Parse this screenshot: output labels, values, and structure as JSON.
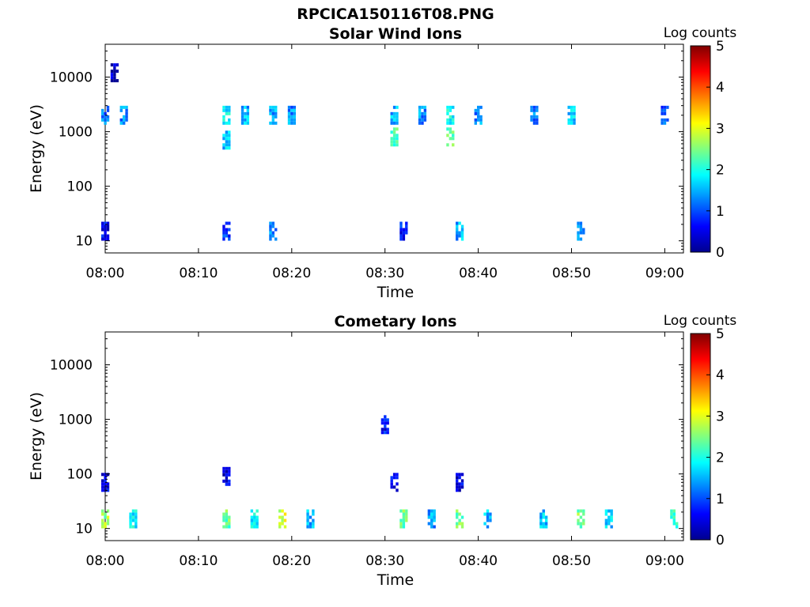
{
  "figure": {
    "filename": "RPCICA150116T08.PNG"
  },
  "colorbar": {
    "label": "Log counts",
    "ticks": [
      "0",
      "1",
      "2",
      "3",
      "4",
      "5"
    ],
    "range": [
      0,
      5
    ],
    "colormap": "jet"
  },
  "chart_data": [
    {
      "type": "heatmap",
      "title": "Solar Wind Ions",
      "xlabel": "Time",
      "ylabel": "Energy (eV)",
      "x_ticks": [
        "08:00",
        "08:10",
        "08:20",
        "08:30",
        "08:40",
        "08:50",
        "09:00"
      ],
      "y_ticks": [
        "10",
        "100",
        "1000",
        "10000"
      ],
      "xlim": [
        "08:00",
        "09:02"
      ],
      "ylim": [
        6,
        40000
      ],
      "yscale": "log",
      "colorbar_label": "Log counts",
      "clim": [
        0,
        5
      ],
      "patches": [
        {
          "t": "08:00",
          "e": 2000,
          "v": 1.2
        },
        {
          "t": "08:00",
          "e": 15,
          "v": 0.6
        },
        {
          "t": "08:01",
          "e": 12000,
          "v": 0.3
        },
        {
          "t": "08:02",
          "e": 2000,
          "v": 1.3
        },
        {
          "t": "08:13",
          "e": 2000,
          "v": 1.8
        },
        {
          "t": "08:13",
          "e": 700,
          "v": 1.6
        },
        {
          "t": "08:13",
          "e": 15,
          "v": 0.9
        },
        {
          "t": "08:15",
          "e": 2000,
          "v": 1.5
        },
        {
          "t": "08:18",
          "e": 2000,
          "v": 1.4
        },
        {
          "t": "08:18",
          "e": 15,
          "v": 1.3
        },
        {
          "t": "08:20",
          "e": 2000,
          "v": 1.3
        },
        {
          "t": "08:31",
          "e": 800,
          "v": 2.3
        },
        {
          "t": "08:31",
          "e": 2000,
          "v": 1.5
        },
        {
          "t": "08:32",
          "e": 15,
          "v": 0.7
        },
        {
          "t": "08:34",
          "e": 2000,
          "v": 1.3
        },
        {
          "t": "08:37",
          "e": 2000,
          "v": 1.9
        },
        {
          "t": "08:37",
          "e": 800,
          "v": 2.3
        },
        {
          "t": "08:38",
          "e": 15,
          "v": 1.5
        },
        {
          "t": "08:40",
          "e": 2000,
          "v": 1.3
        },
        {
          "t": "08:46",
          "e": 2000,
          "v": 1.2
        },
        {
          "t": "08:50",
          "e": 2000,
          "v": 1.6
        },
        {
          "t": "08:51",
          "e": 15,
          "v": 1.5
        },
        {
          "t": "09:00",
          "e": 2000,
          "v": 1.1
        }
      ]
    },
    {
      "type": "heatmap",
      "title": "Cometary Ions",
      "xlabel": "Time",
      "ylabel": "Energy (eV)",
      "x_ticks": [
        "08:00",
        "08:10",
        "08:20",
        "08:30",
        "08:40",
        "08:50",
        "09:00"
      ],
      "y_ticks": [
        "10",
        "100",
        "1000",
        "10000"
      ],
      "xlim": [
        "08:00",
        "09:02"
      ],
      "ylim": [
        6,
        40000
      ],
      "yscale": "log",
      "colorbar_label": "Log counts",
      "clim": [
        0,
        5
      ],
      "patches": [
        {
          "t": "08:00",
          "e": 15,
          "v": 2.6
        },
        {
          "t": "08:00",
          "e": 70,
          "v": 0.5
        },
        {
          "t": "08:03",
          "e": 15,
          "v": 1.9
        },
        {
          "t": "08:13",
          "e": 15,
          "v": 2.4
        },
        {
          "t": "08:13",
          "e": 90,
          "v": 0.5
        },
        {
          "t": "08:16",
          "e": 15,
          "v": 1.9
        },
        {
          "t": "08:19",
          "e": 15,
          "v": 2.9
        },
        {
          "t": "08:22",
          "e": 15,
          "v": 1.5
        },
        {
          "t": "08:30",
          "e": 800,
          "v": 0.6
        },
        {
          "t": "08:31",
          "e": 70,
          "v": 0.6
        },
        {
          "t": "08:32",
          "e": 15,
          "v": 2.4
        },
        {
          "t": "08:35",
          "e": 15,
          "v": 1.4
        },
        {
          "t": "08:38",
          "e": 15,
          "v": 2.4
        },
        {
          "t": "08:38",
          "e": 70,
          "v": 0.5
        },
        {
          "t": "08:41",
          "e": 15,
          "v": 1.5
        },
        {
          "t": "08:47",
          "e": 15,
          "v": 1.6
        },
        {
          "t": "08:51",
          "e": 15,
          "v": 2.5
        },
        {
          "t": "08:54",
          "e": 15,
          "v": 1.6
        },
        {
          "t": "09:01",
          "e": 15,
          "v": 2.0
        }
      ]
    }
  ]
}
